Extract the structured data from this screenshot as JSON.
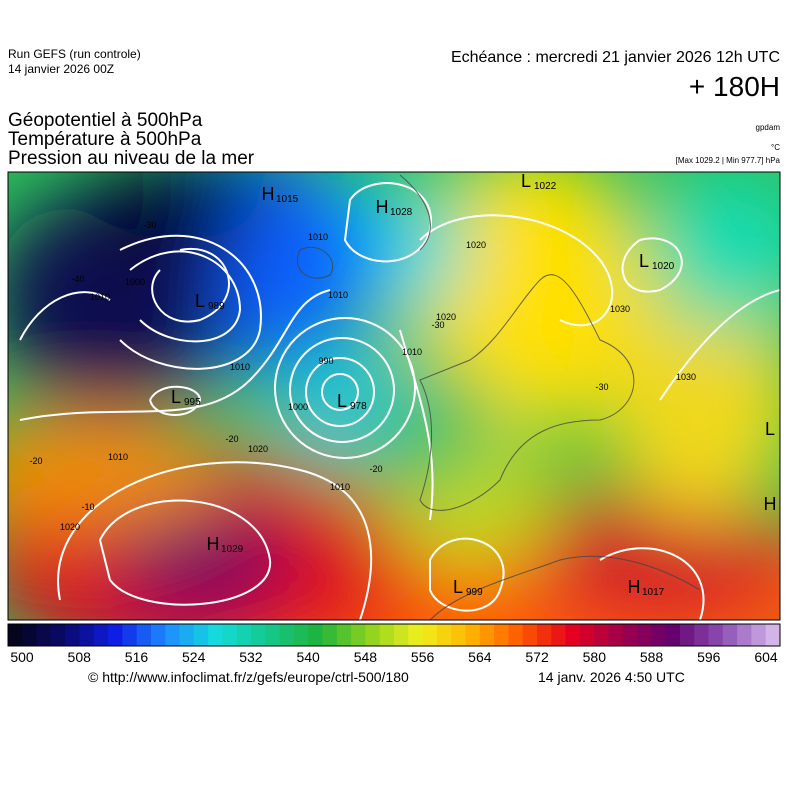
{
  "header": {
    "run": "Run GEFS (run controle)",
    "run_date": "14 janvier 2026 00Z",
    "valid": "Echéance : mercredi 21 janvier 2026 12h UTC",
    "lead": "+ 180H",
    "fields": [
      "Géopotentiel à 500hPa",
      "Température à 500hPa",
      "Pression au niveau de la mer"
    ],
    "unit_geo": "gpdam",
    "unit_temp": "°C",
    "pressure_range": "[Max 1029.2 | Min 977.7] hPa"
  },
  "map": {
    "centers": [
      {
        "kind": "H",
        "value": "1015"
      },
      {
        "kind": "H",
        "value": "1028"
      },
      {
        "kind": "L",
        "value": "1022"
      },
      {
        "kind": "L",
        "value": "1020"
      },
      {
        "kind": "L",
        "value": "989"
      },
      {
        "kind": "L",
        "value": "995"
      },
      {
        "kind": "L",
        "value": "978"
      },
      {
        "kind": "H",
        "value": "1029"
      },
      {
        "kind": "L",
        "value": "999"
      },
      {
        "kind": "H",
        "value": "1017"
      },
      {
        "kind": "L"
      },
      {
        "kind": "H"
      }
    ],
    "isobar_labels": [
      "1010",
      "1000",
      "1010",
      "1010",
      "990",
      "1000",
      "1010",
      "1020",
      "1020",
      "1010",
      "1030",
      "1020",
      "1010",
      "1020",
      "1030",
      "1010"
    ],
    "temp_labels": [
      "-40",
      "-30",
      "-20",
      "-20",
      "-20",
      "-30",
      "-30",
      "-10"
    ]
  },
  "colorbar": {
    "ticks": [
      500,
      508,
      516,
      524,
      532,
      540,
      548,
      556,
      564,
      572,
      580,
      588,
      596,
      604
    ],
    "stops": [
      "#05051e",
      "#0a0a6e",
      "#0f1ee6",
      "#1e8cff",
      "#14dcdc",
      "#14c88c",
      "#1eb43c",
      "#8cd21e",
      "#f0f01e",
      "#ffb400",
      "#ff5a00",
      "#e6001e",
      "#a0004b",
      "#64006e",
      "#8c50b4",
      "#d2b4e6"
    ]
  },
  "footer": {
    "source": "© http://www.infoclimat.fr/z/gefs/europe/ctrl-500/180",
    "issued": "14 janv. 2026  4:50 UTC"
  }
}
